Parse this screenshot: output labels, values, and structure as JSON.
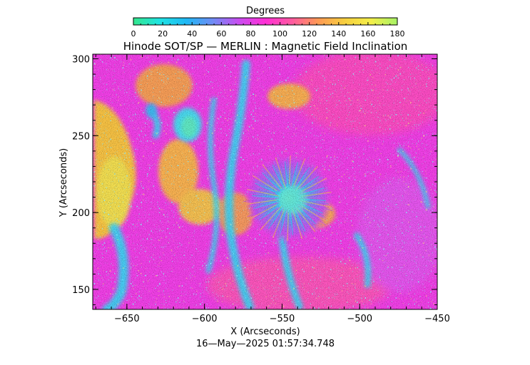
{
  "colorbar": {
    "title": "Degrees",
    "ticks": [
      "0",
      "20",
      "40",
      "60",
      "80",
      "100",
      "120",
      "140",
      "160",
      "180"
    ],
    "range": [
      0,
      180
    ],
    "colors": [
      "#33e68c",
      "#1fe3e3",
      "#1fb8f5",
      "#6f8cf5",
      "#c94df0",
      "#ff2fd6",
      "#ff5aa0",
      "#ff9a55",
      "#f7cf3f",
      "#f4ef4a",
      "#a6f266"
    ]
  },
  "plot": {
    "title": "Hinode SOT/SP — MERLIN : Magnetic Field Inclination",
    "xlabel": "X (Arcseconds)",
    "ylabel": "Y (Arcseconds)",
    "xticks": [
      "−650",
      "−600",
      "−550",
      "−500",
      "−450"
    ],
    "yticks": [
      "150",
      "200",
      "250",
      "300"
    ],
    "xrange": [
      -672,
      -450
    ],
    "yrange": [
      137,
      303
    ]
  },
  "timestamp": "16—May—2025 01:57:34.748"
}
